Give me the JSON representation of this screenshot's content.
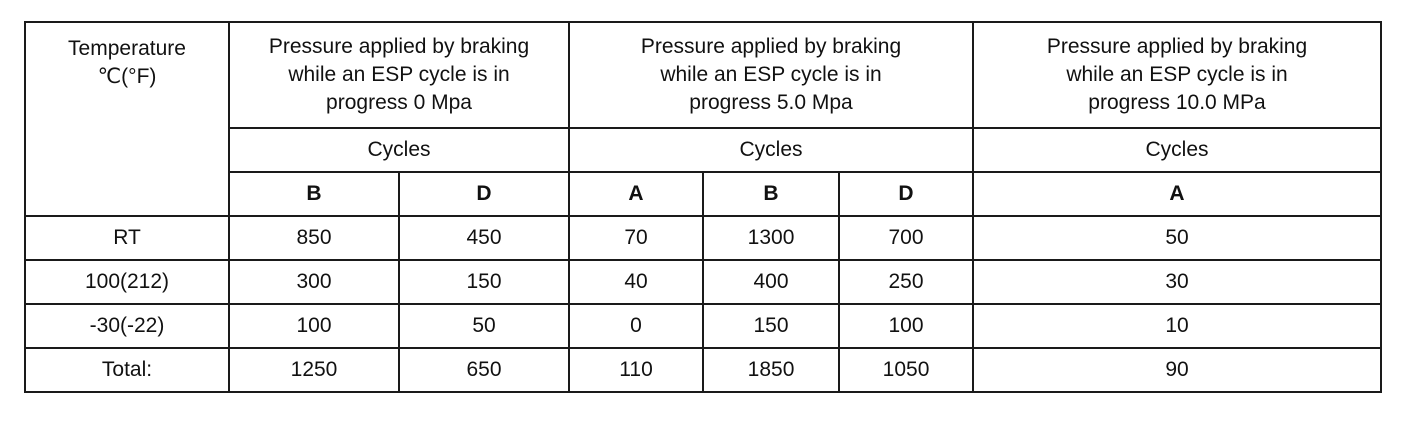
{
  "table": {
    "temp_header": [
      "Temperature",
      "℃(°F)"
    ],
    "groups": [
      {
        "header": [
          "Pressure applied by braking",
          "while an ESP cycle is in",
          "progress 0 Mpa"
        ],
        "cycles_label": "Cycles",
        "subcolumns": [
          "B",
          "D"
        ]
      },
      {
        "header": [
          "Pressure applied by braking",
          "while an ESP cycle is in",
          "progress 5.0 Mpa"
        ],
        "cycles_label": "Cycles",
        "subcolumns": [
          "A",
          "B",
          "D"
        ]
      },
      {
        "header": [
          "Pressure applied by braking",
          "while an ESP cycle is in",
          "progress 10.0 MPa"
        ],
        "cycles_label": "Cycles",
        "subcolumns": [
          "A"
        ]
      }
    ],
    "rows": [
      {
        "temp": "RT",
        "values": [
          "850",
          "450",
          "70",
          "1300",
          "700",
          "50"
        ]
      },
      {
        "temp": "100(212)",
        "values": [
          "300",
          "150",
          "40",
          "400",
          "250",
          "30"
        ]
      },
      {
        "temp": "-30(-22)",
        "values": [
          "100",
          "50",
          "0",
          "150",
          "100",
          "10"
        ]
      },
      {
        "temp": "Total:",
        "values": [
          "1250",
          "650",
          "110",
          "1850",
          "1050",
          "90"
        ]
      }
    ]
  }
}
